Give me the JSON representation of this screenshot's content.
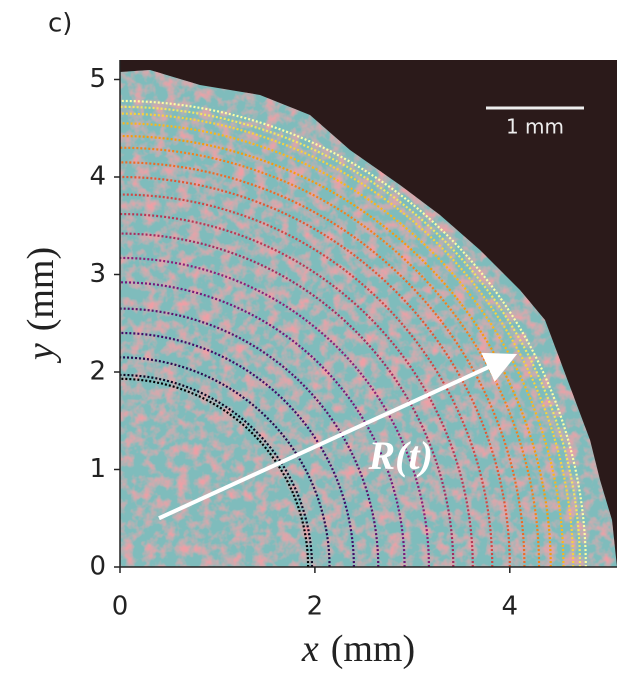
{
  "panel_label": "c)",
  "chart_data": {
    "type": "front-arcs",
    "xlabel": {
      "symbol": "x",
      "unit": "(mm)"
    },
    "ylabel": {
      "symbol": "y",
      "unit": "(mm)"
    },
    "xlim": [
      0,
      5.1
    ],
    "ylim": [
      0,
      5.2
    ],
    "xticks": [
      0,
      2,
      4
    ],
    "yticks": [
      0,
      1,
      2,
      3,
      4,
      5
    ],
    "radii": [
      1.93,
      1.97,
      2.15,
      2.4,
      2.65,
      2.92,
      3.17,
      3.42,
      3.62,
      3.82,
      4.0,
      4.15,
      4.3,
      4.42,
      4.55,
      4.65,
      4.72,
      4.78
    ],
    "colors": [
      "#000004",
      "#0b0724",
      "#2a0a4f",
      "#420a68",
      "#5c126e",
      "#76187b",
      "#8e1f79",
      "#a52c60",
      "#bc3754",
      "#d24644",
      "#e25734",
      "#ee6a24",
      "#f4801c",
      "#f99a0a",
      "#fbb61a",
      "#f7d13d",
      "#f2e661",
      "#fcffa4"
    ],
    "annotation": "R(t)",
    "scale_bar": "1 mm"
  }
}
